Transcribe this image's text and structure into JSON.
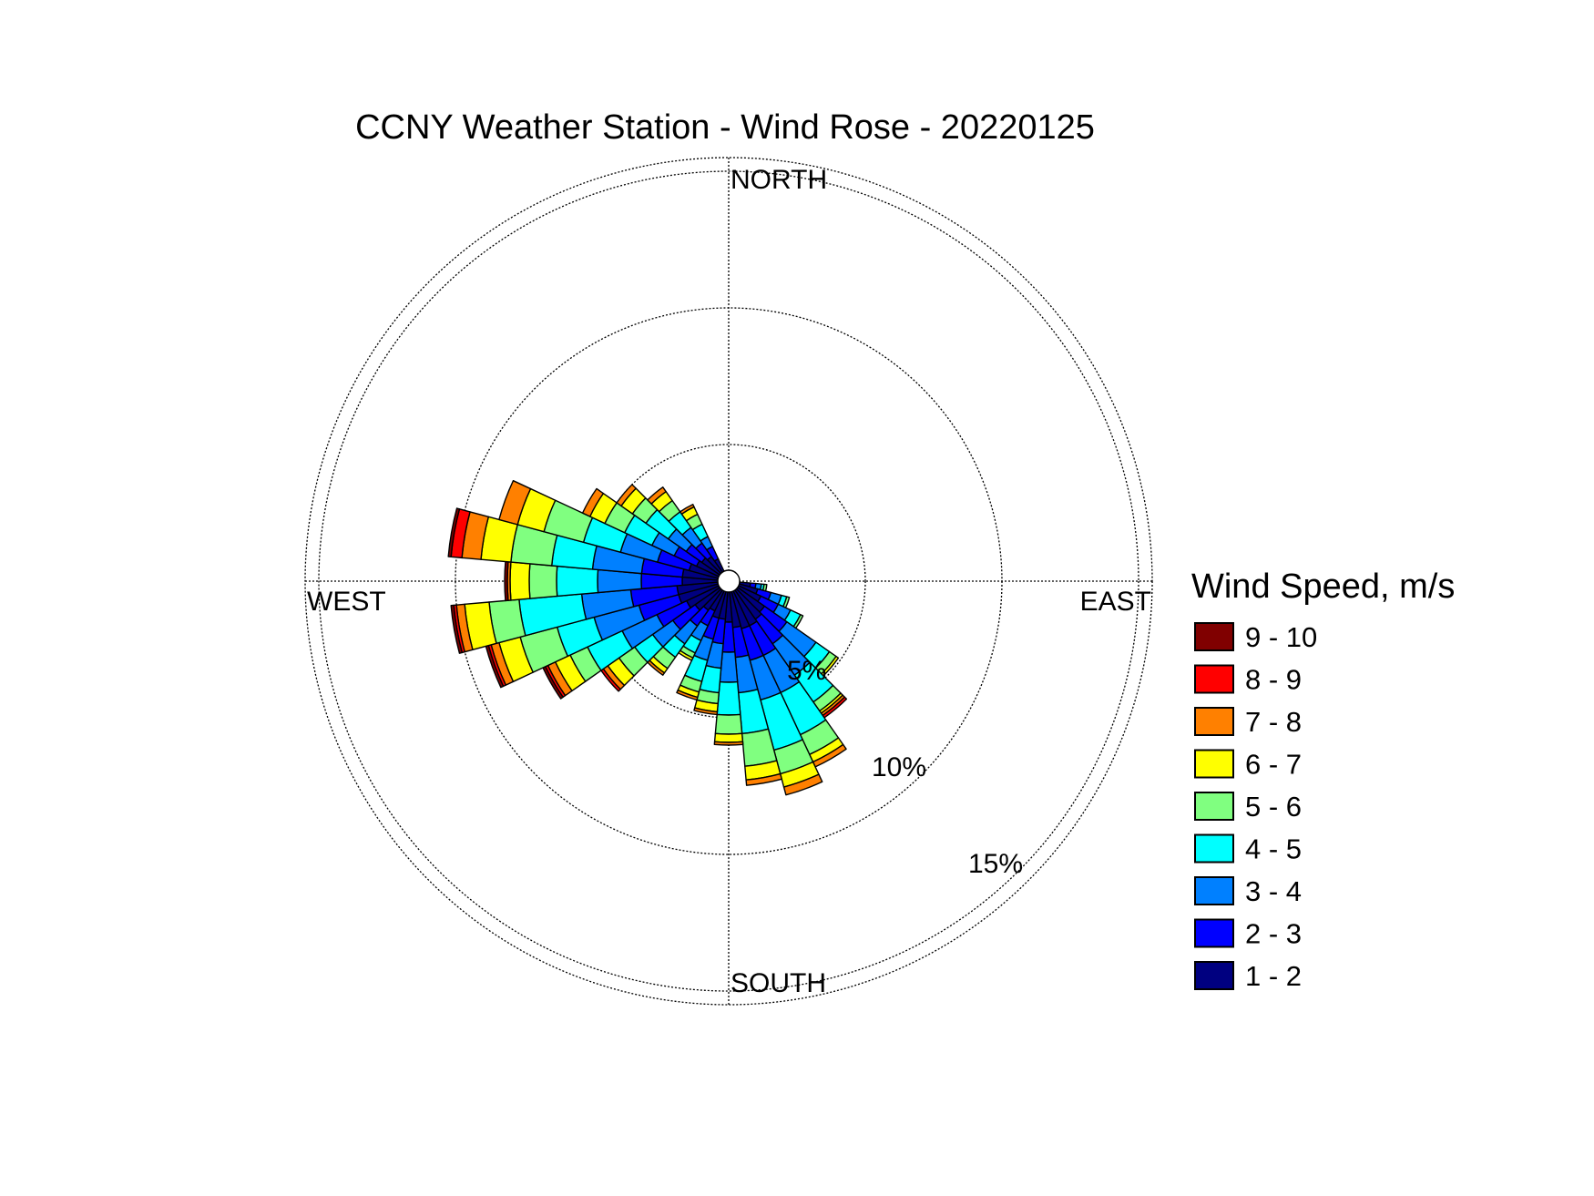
{
  "chart_data": {
    "type": "windrose",
    "title": "CCNY Weather Station - Wind Rose - 20220125",
    "direction_labels": {
      "north": "NORTH",
      "south": "SOUTH",
      "east": "EAST",
      "west": "WEST"
    },
    "radial_unit": "%",
    "rings": [
      {
        "value": 5,
        "label": "5%"
      },
      {
        "value": 10,
        "label": "10%"
      },
      {
        "value": 15,
        "label": "15%"
      }
    ],
    "rmax": 15.5,
    "grid": true,
    "legend": {
      "title": "Wind Speed, m/s",
      "placement": "right",
      "items": [
        {
          "label": "9 - 10",
          "color": "#800000"
        },
        {
          "label": "8 - 9",
          "color": "#ff0000"
        },
        {
          "label": "7 - 8",
          "color": "#ff8000"
        },
        {
          "label": "6 - 7",
          "color": "#ffff00"
        },
        {
          "label": "5 - 6",
          "color": "#80ff80"
        },
        {
          "label": "4 - 5",
          "color": "#00ffff"
        },
        {
          "label": "3 - 4",
          "color": "#0080ff"
        },
        {
          "label": "2 - 3",
          "color": "#0000ff"
        },
        {
          "label": "1 - 2",
          "color": "#000080"
        }
      ]
    },
    "speed_bins_low_to_high": [
      "1 - 2",
      "2 - 3",
      "3 - 4",
      "4 - 5",
      "5 - 6",
      "6 - 7",
      "7 - 8",
      "8 - 9",
      "9 - 10"
    ],
    "sector_width_deg": 10,
    "sectors": [
      {
        "direction_deg": 100,
        "cumulative_percent": [
          0.4,
          0.6,
          0.8,
          0.9,
          1.0,
          1.0,
          1.0,
          1.0,
          1.0
        ]
      },
      {
        "direction_deg": 110,
        "cumulative_percent": [
          0.7,
          1.2,
          1.6,
          1.8,
          1.9,
          1.9,
          1.9,
          1.9,
          1.9
        ]
      },
      {
        "direction_deg": 120,
        "cumulative_percent": [
          0.9,
          1.6,
          2.1,
          2.5,
          2.6,
          2.6,
          2.6,
          2.6,
          2.6
        ]
      },
      {
        "direction_deg": 130,
        "cumulative_percent": [
          1.2,
          2.2,
          3.5,
          4.1,
          4.4,
          4.5,
          4.5,
          4.5,
          4.5
        ]
      },
      {
        "direction_deg": 140,
        "cumulative_percent": [
          1.3,
          2.4,
          3.8,
          5.0,
          5.4,
          5.5,
          5.6,
          5.7,
          5.7
        ]
      },
      {
        "direction_deg": 150,
        "cumulative_percent": [
          1.4,
          2.6,
          4.1,
          5.8,
          6.6,
          6.9,
          7.1,
          7.1,
          7.1
        ]
      },
      {
        "direction_deg": 160,
        "cumulative_percent": [
          1.4,
          2.6,
          4.1,
          6.0,
          6.9,
          7.4,
          7.7,
          7.7,
          7.7
        ]
      },
      {
        "direction_deg": 170,
        "cumulative_percent": [
          1.3,
          2.4,
          3.7,
          5.2,
          6.4,
          6.9,
          7.1,
          7.1,
          7.1
        ]
      },
      {
        "direction_deg": 180,
        "cumulative_percent": [
          1.1,
          2.2,
          3.3,
          4.5,
          5.2,
          5.5,
          5.6,
          5.6,
          5.6
        ]
      },
      {
        "direction_deg": 190,
        "cumulative_percent": [
          1.0,
          1.9,
          2.8,
          3.7,
          4.1,
          4.4,
          4.5,
          4.5,
          4.5
        ]
      },
      {
        "direction_deg": 200,
        "cumulative_percent": [
          1.0,
          1.8,
          2.6,
          3.4,
          3.8,
          4.0,
          4.1,
          4.1,
          4.1
        ]
      },
      {
        "direction_deg": 210,
        "cumulative_percent": [
          0.8,
          1.4,
          2.0,
          2.5,
          2.7,
          2.8,
          2.8,
          2.8,
          2.8
        ]
      },
      {
        "direction_deg": 220,
        "cumulative_percent": [
          0.9,
          1.6,
          2.4,
          3.0,
          3.5,
          3.7,
          3.8,
          3.8,
          3.8
        ]
      },
      {
        "direction_deg": 230,
        "cumulative_percent": [
          1.1,
          2.1,
          3.0,
          3.8,
          4.5,
          5.0,
          5.2,
          5.3,
          5.3
        ]
      },
      {
        "direction_deg": 240,
        "cumulative_percent": [
          1.3,
          2.5,
          3.9,
          5.3,
          6.0,
          6.6,
          6.9,
          7.0,
          7.1
        ]
      },
      {
        "direction_deg": 250,
        "cumulative_percent": [
          1.5,
          3.0,
          4.7,
          6.1,
          7.5,
          8.3,
          8.6,
          8.7,
          8.8
        ]
      },
      {
        "direction_deg": 260,
        "cumulative_percent": [
          1.5,
          3.2,
          5.0,
          7.3,
          8.4,
          9.3,
          9.6,
          9.7,
          9.8
        ]
      },
      {
        "direction_deg": 270,
        "cumulative_percent": [
          1.3,
          2.8,
          4.4,
          5.9,
          6.9,
          7.6,
          7.7,
          7.7,
          7.8
        ]
      },
      {
        "direction_deg": 280,
        "cumulative_percent": [
          1.3,
          2.8,
          4.6,
          6.1,
          7.6,
          8.7,
          9.4,
          9.8,
          9.9
        ]
      },
      {
        "direction_deg": 290,
        "cumulative_percent": [
          1.1,
          2.3,
          3.7,
          5.1,
          6.6,
          7.6,
          8.3,
          8.3,
          8.3
        ]
      },
      {
        "direction_deg": 300,
        "cumulative_percent": [
          0.9,
          1.8,
          2.7,
          3.8,
          4.6,
          5.2,
          5.5,
          5.5,
          5.5
        ]
      },
      {
        "direction_deg": 310,
        "cumulative_percent": [
          0.8,
          1.5,
          2.3,
          3.3,
          3.9,
          4.4,
          4.6,
          4.6,
          4.6
        ]
      },
      {
        "direction_deg": 320,
        "cumulative_percent": [
          0.7,
          1.3,
          2.0,
          2.7,
          3.2,
          3.6,
          3.8,
          3.8,
          3.8
        ]
      },
      {
        "direction_deg": 330,
        "cumulative_percent": [
          0.5,
          1.0,
          1.4,
          1.9,
          2.3,
          2.6,
          2.7,
          2.7,
          2.7
        ]
      }
    ]
  }
}
